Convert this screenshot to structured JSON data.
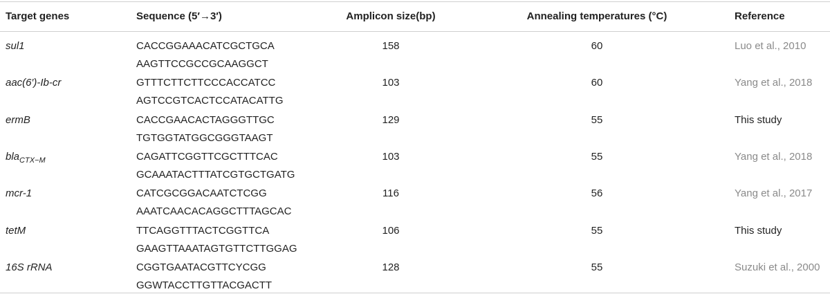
{
  "table": {
    "header": [
      "Target genes",
      "Sequence (5′→3′)",
      "Amplicon size(bp)",
      "Annealing temperatures (°C)",
      "Reference"
    ],
    "rows": [
      {
        "gene": "sul1",
        "sequences": [
          "CACCGGAAACATCGCTGCA",
          "AAGTTCCGCCGCAAGGCT"
        ],
        "amplicon": 158,
        "annealing": 60,
        "reference": "Luo et al., 2010",
        "reference_color": "#8a8a8a"
      },
      {
        "gene": "aac(6′)-Ib-cr",
        "sequences": [
          "GTTTCTTCTTCCCACCATCC",
          "AGTCCGTCACTCCATACATTG"
        ],
        "amplicon": 103,
        "annealing": 60,
        "reference": "Yang et al., 2018",
        "reference_color": "#8a8a8a"
      },
      {
        "gene": "ermB",
        "sequences": [
          "CACCGAACACTAGGGTTGC",
          "TGTGGTATGGCGGGTAAGT"
        ],
        "amplicon": 129,
        "annealing": 55,
        "reference": "This study",
        "reference_color": "#222222"
      },
      {
        "gene": "bla",
        "gene_subscript": "CTX−M",
        "sequences": [
          "CAGATTCGGTTCGCTTTCAC",
          "GCAAATACTTTATCGTGCTGATG"
        ],
        "amplicon": 103,
        "annealing": 55,
        "reference": "Yang et al., 2018",
        "reference_color": "#8a8a8a"
      },
      {
        "gene": "mcr-1",
        "sequences": [
          "CATCGCGGACAATCTCGG",
          "AAATCAACACAGGCTTTAGCAC"
        ],
        "amplicon": 116,
        "annealing": 56,
        "reference": "Yang et al., 2017",
        "reference_color": "#8a8a8a"
      },
      {
        "gene": "tetM",
        "sequences": [
          "TTCAGGTTTACTCGGTTCA",
          "GAAGTTAAATAGTGTTCTTGGAG"
        ],
        "amplicon": 106,
        "annealing": 55,
        "reference": "This study",
        "reference_color": "#222222"
      },
      {
        "gene": "16S rRNA",
        "sequences": [
          "CGGTGAATACGTTCYCGG",
          "GGWTACCTTGTTACGACTT"
        ],
        "amplicon": 128,
        "annealing": 55,
        "reference": "Suzuki et al., 2000",
        "reference_color": "#8a8a8a"
      }
    ]
  }
}
